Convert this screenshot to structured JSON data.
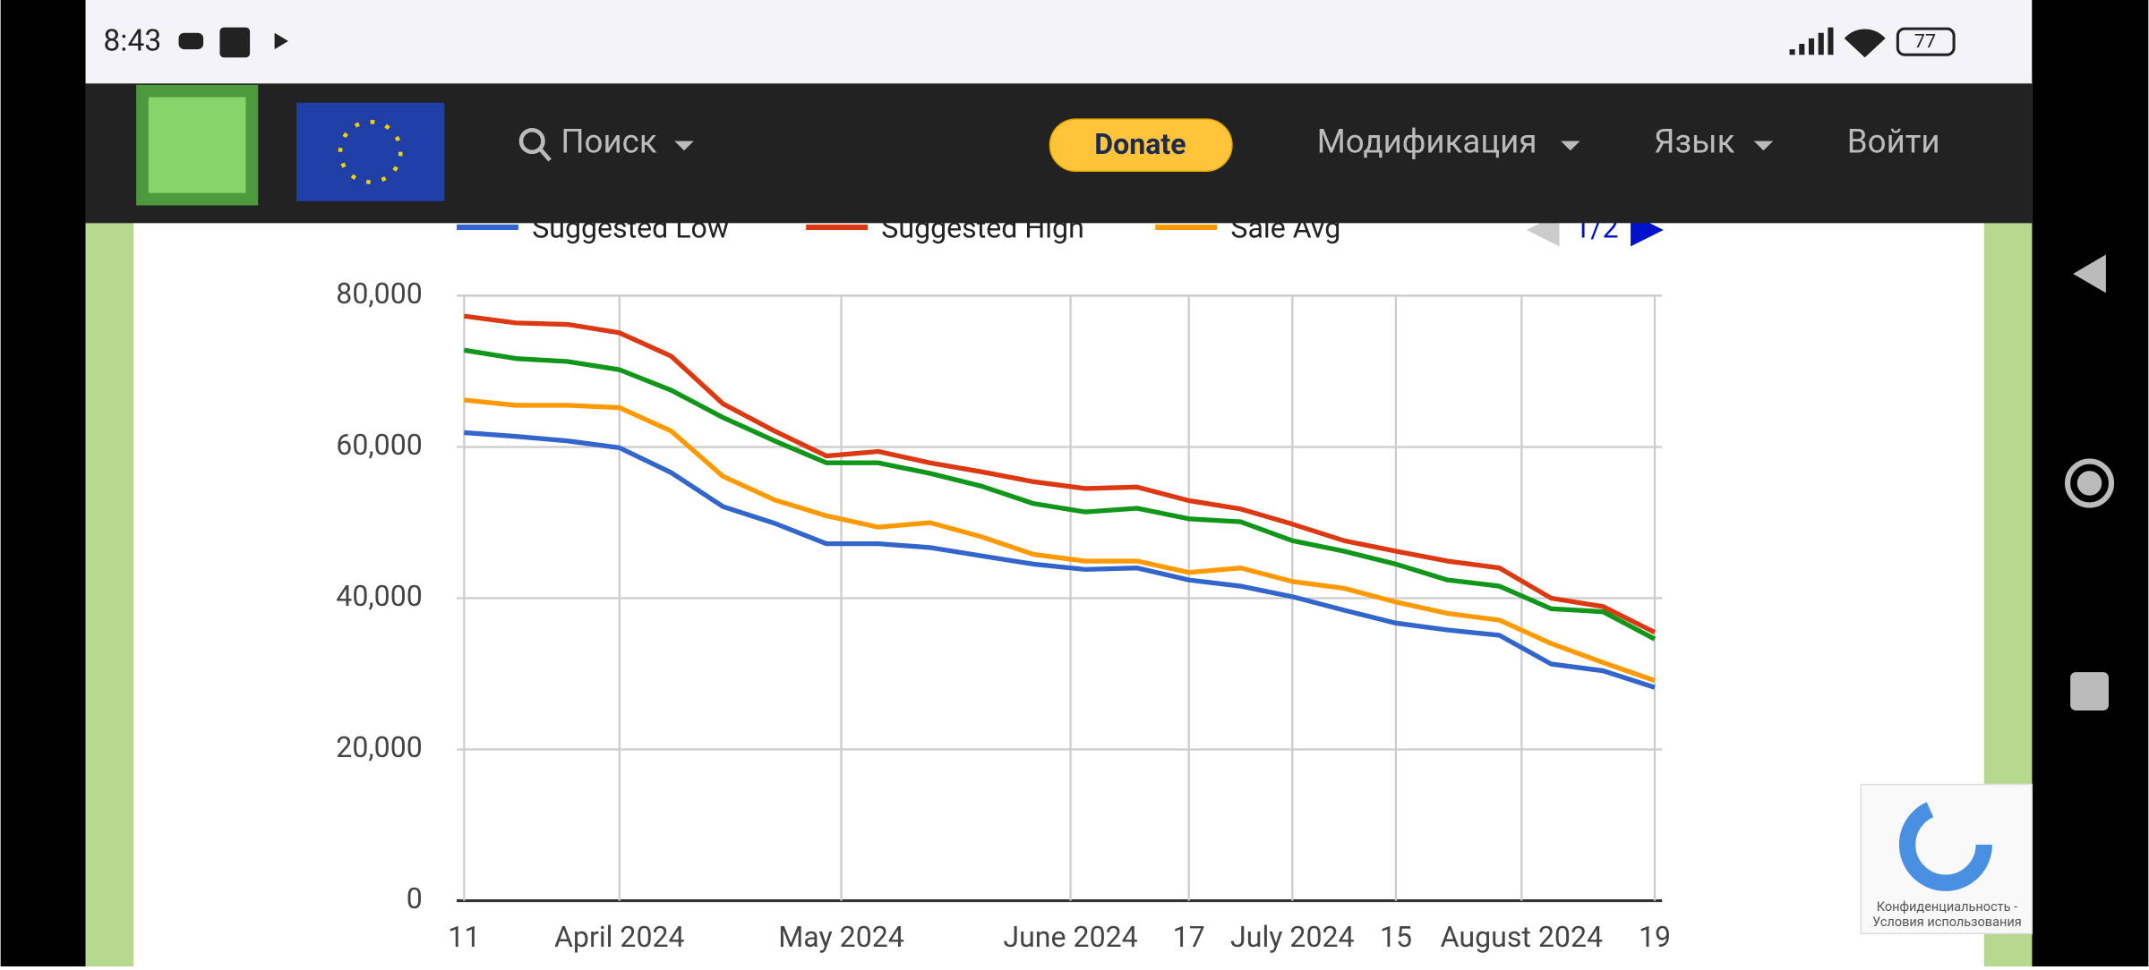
{
  "status_bar": {
    "time": "8:43",
    "battery": "77"
  },
  "nav": {
    "search": "Поиск",
    "donate": "Donate",
    "mod": "Модификация",
    "lang": "Язык",
    "login": "Войти"
  },
  "recaptcha": {
    "line1": "Конфиденциальность -",
    "line2": "Условия использования"
  },
  "chart_data": {
    "type": "line",
    "legend_page": "1/2",
    "x": [
      "2024-03-11",
      "2024-03-18",
      "2024-03-25",
      "2024-04-01",
      "2024-04-08",
      "2024-04-15",
      "2024-04-22",
      "2024-04-29",
      "2024-05-06",
      "2024-05-13",
      "2024-05-20",
      "2024-05-27",
      "2024-06-03",
      "2024-06-10",
      "2024-06-17",
      "2024-06-24",
      "2024-07-01",
      "2024-07-08",
      "2024-07-15",
      "2024-07-22",
      "2024-07-29",
      "2024-08-05",
      "2024-08-12",
      "2024-08-19"
    ],
    "series": [
      {
        "name": "Suggested Low",
        "color": "#3366cc",
        "values": [
          61900,
          61400,
          60800,
          59900,
          56600,
          52100,
          49900,
          47200,
          47200,
          46700,
          45600,
          44500,
          43800,
          44000,
          42400,
          41600,
          40200,
          38400,
          36700,
          35800,
          35100,
          31300,
          30400,
          28200
        ]
      },
      {
        "name": "Suggested High",
        "color": "#dc3912",
        "values": [
          77300,
          76400,
          76200,
          75100,
          72000,
          65700,
          62100,
          58800,
          59400,
          57900,
          56700,
          55400,
          54500,
          54700,
          52900,
          51800,
          49800,
          47600,
          46200,
          44900,
          44000,
          40000,
          38900,
          35500
        ]
      },
      {
        "name": "Sale Avg",
        "color": "#ff9900",
        "values": [
          66200,
          65500,
          65500,
          65200,
          62100,
          56100,
          53000,
          50900,
          49400,
          50000,
          48100,
          45800,
          44900,
          44900,
          43400,
          44000,
          42200,
          41300,
          39500,
          38000,
          37100,
          34000,
          31500,
          29100
        ]
      },
      {
        "color": "#109618",
        "values": [
          72800,
          71700,
          71300,
          70200,
          67500,
          63900,
          60800,
          57900,
          57900,
          56500,
          54800,
          52500,
          51400,
          51900,
          50500,
          50100,
          47600,
          46200,
          44500,
          42400,
          41600,
          38600,
          38200,
          34600
        ]
      }
    ],
    "xlim": [
      "2024-03-10",
      "2024-08-20"
    ],
    "xticks": [
      {
        "value": "2024-03-11",
        "label": "11"
      },
      {
        "value": "2024-04-01",
        "label": "April 2024"
      },
      {
        "value": "2024-05-01",
        "label": "May 2024"
      },
      {
        "value": "2024-06-01",
        "label": "June 2024"
      },
      {
        "value": "2024-06-17",
        "label": "17"
      },
      {
        "value": "2024-07-01",
        "label": "July 2024"
      },
      {
        "value": "2024-07-15",
        "label": "15"
      },
      {
        "value": "2024-08-01",
        "label": "August 2024"
      },
      {
        "value": "2024-08-19",
        "label": "19"
      }
    ],
    "ylim": [
      0,
      80000
    ],
    "yticks": [
      0,
      {
        "value": 20000,
        "label": "20,000"
      },
      {
        "value": 40000,
        "label": "40,000"
      },
      {
        "value": 60000,
        "label": "60,000"
      },
      {
        "value": 80000,
        "label": "80,000"
      }
    ],
    "grid": true
  }
}
